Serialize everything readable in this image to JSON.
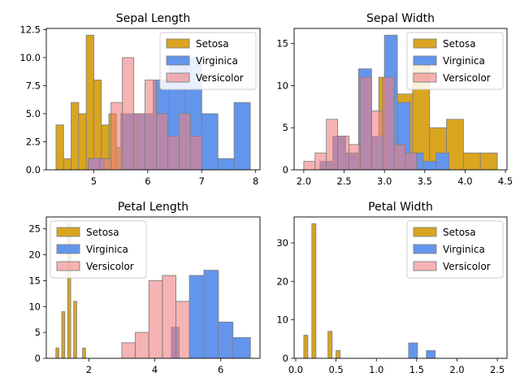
{
  "chart_data": [
    {
      "type": "histogram",
      "title": "Sepal Length",
      "xlim": [
        4.12,
        8.08
      ],
      "ylim": [
        0,
        12.6
      ],
      "xticks": [
        5,
        6,
        7,
        8
      ],
      "yticks": [
        0.0,
        2.5,
        5.0,
        7.5,
        10.0,
        12.5
      ],
      "ytick_labels": [
        "0.0",
        "2.5",
        "5.0",
        "7.5",
        "10.0",
        "12.5"
      ],
      "legend": "top-right",
      "series": [
        {
          "name": "Setosa",
          "color": "#DAA520",
          "edge": "#808080",
          "alpha": 1.0,
          "bins": [
            [
              4.3,
              4.44,
              4
            ],
            [
              4.44,
              4.58,
              1
            ],
            [
              4.58,
              4.72,
              6
            ],
            [
              4.72,
              4.86,
              5
            ],
            [
              4.86,
              5.0,
              12
            ],
            [
              5.0,
              5.14,
              8
            ],
            [
              5.14,
              5.28,
              4
            ],
            [
              5.28,
              5.42,
              5
            ],
            [
              5.42,
              5.56,
              2
            ],
            [
              5.56,
              5.7,
              3
            ]
          ]
        },
        {
          "name": "Virginica",
          "color": "#6495ED",
          "edge": "#808080",
          "alpha": 1.0,
          "bins": [
            [
              4.9,
              5.2,
              1
            ],
            [
              5.2,
              5.5,
              0
            ],
            [
              5.5,
              5.8,
              5
            ],
            [
              5.8,
              6.1,
              5
            ],
            [
              6.1,
              6.4,
              8
            ],
            [
              6.4,
              6.7,
              10
            ],
            [
              6.7,
              7.0,
              10
            ],
            [
              7.0,
              7.3,
              5
            ],
            [
              7.3,
              7.6,
              1
            ],
            [
              7.6,
              7.9,
              6
            ]
          ]
        },
        {
          "name": "Versicolor",
          "color": "#F08080",
          "edge": "#808080",
          "alpha": 0.6,
          "bins": [
            [
              4.9,
              5.11,
              1
            ],
            [
              5.11,
              5.32,
              1
            ],
            [
              5.32,
              5.53,
              6
            ],
            [
              5.53,
              5.74,
              10
            ],
            [
              5.74,
              5.95,
              5
            ],
            [
              5.95,
              6.16,
              8
            ],
            [
              6.16,
              6.37,
              5
            ],
            [
              6.37,
              6.58,
              3
            ],
            [
              6.58,
              6.79,
              5
            ],
            [
              6.79,
              7.0,
              3
            ]
          ]
        }
      ]
    },
    {
      "type": "histogram",
      "title": "Sepal Width",
      "xlim": [
        1.88,
        4.52
      ],
      "ylim": [
        0,
        16.8
      ],
      "xticks": [
        2.0,
        2.5,
        3.0,
        3.5,
        4.0,
        4.5
      ],
      "yticks": [
        0,
        5,
        10,
        15
      ],
      "ytick_labels": [
        "0",
        "5",
        "10",
        "15"
      ],
      "legend": "top-right",
      "series": [
        {
          "name": "Setosa",
          "color": "#DAA520",
          "edge": "#808080",
          "alpha": 1.0,
          "bins": [
            [
              2.3,
              2.51,
              1
            ],
            [
              2.51,
              2.72,
              0
            ],
            [
              2.72,
              2.93,
              3
            ],
            [
              2.93,
              3.14,
              11
            ],
            [
              3.14,
              3.35,
              9
            ],
            [
              3.35,
              3.56,
              13
            ],
            [
              3.56,
              3.77,
              5
            ],
            [
              3.77,
              3.98,
              6
            ],
            [
              3.98,
              4.19,
              2
            ],
            [
              4.19,
              4.4,
              2
            ]
          ]
        },
        {
          "name": "Virginica",
          "color": "#6495ED",
          "edge": "#808080",
          "alpha": 1.0,
          "bins": [
            [
              2.2,
              2.36,
              1
            ],
            [
              2.36,
              2.52,
              4
            ],
            [
              2.52,
              2.68,
              2
            ],
            [
              2.68,
              2.84,
              12
            ],
            [
              2.84,
              3.0,
              4
            ],
            [
              3.0,
              3.16,
              16
            ],
            [
              3.16,
              3.32,
              8
            ],
            [
              3.32,
              3.48,
              2
            ],
            [
              3.48,
              3.64,
              1
            ],
            [
              3.64,
              3.8,
              2
            ]
          ]
        },
        {
          "name": "Versicolor",
          "color": "#F08080",
          "edge": "#808080",
          "alpha": 0.6,
          "bins": [
            [
              2.0,
              2.14,
              1
            ],
            [
              2.14,
              2.28,
              2
            ],
            [
              2.28,
              2.42,
              6
            ],
            [
              2.42,
              2.56,
              4
            ],
            [
              2.56,
              2.7,
              3
            ],
            [
              2.7,
              2.84,
              11
            ],
            [
              2.84,
              2.98,
              7
            ],
            [
              2.98,
              3.12,
              11
            ],
            [
              3.12,
              3.26,
              3
            ],
            [
              3.26,
              3.4,
              2
            ]
          ]
        }
      ]
    },
    {
      "type": "histogram",
      "title": "Petal Length",
      "xlim": [
        0.71,
        7.19
      ],
      "ylim": [
        0,
        27.3
      ],
      "xticks": [
        2,
        4,
        6
      ],
      "yticks": [
        0,
        5,
        10,
        15,
        20,
        25
      ],
      "ytick_labels": [
        "0",
        "5",
        "10",
        "15",
        "20",
        "25"
      ],
      "legend": "top-left",
      "series": [
        {
          "name": "Setosa",
          "color": "#DAA520",
          "edge": "#808080",
          "alpha": 1.0,
          "bins": [
            [
              1.0,
              1.09,
              2
            ],
            [
              1.09,
              1.18,
              0
            ],
            [
              1.18,
              1.27,
              9
            ],
            [
              1.27,
              1.36,
              0
            ],
            [
              1.36,
              1.45,
              26
            ],
            [
              1.45,
              1.54,
              0
            ],
            [
              1.54,
              1.63,
              11
            ],
            [
              1.63,
              1.72,
              0
            ],
            [
              1.72,
              1.81,
              0
            ],
            [
              1.81,
              1.9,
              2
            ]
          ]
        },
        {
          "name": "Virginica",
          "color": "#6495ED",
          "edge": "#808080",
          "alpha": 1.0,
          "bins": [
            [
              4.5,
              4.74,
              6
            ],
            [
              4.74,
              4.98,
              0
            ],
            [
              4.98,
              5.22,
              0
            ],
            [
              5.22,
              5.46,
              0
            ],
            [
              5.46,
              5.7,
              0
            ],
            [
              5.7,
              5.94,
              0
            ],
            [
              5.94,
              6.18,
              0
            ],
            [
              6.18,
              6.42,
              0
            ],
            [
              6.42,
              6.66,
              0
            ],
            [
              6.66,
              6.9,
              0
            ]
          ]
        },
        {
          "name": "Versicolor",
          "color": "#F08080",
          "edge": "#808080",
          "alpha": 0.6,
          "bins": [
            [
              3.0,
              3.41,
              3
            ],
            [
              3.41,
              3.82,
              5
            ],
            [
              3.82,
              4.23,
              15
            ],
            [
              4.23,
              4.64,
              16
            ],
            [
              4.64,
              5.05,
              11
            ],
            [
              5.05,
              5.46,
              0
            ],
            [
              5.46,
              5.87,
              0
            ],
            [
              5.87,
              6.28,
              0
            ],
            [
              6.28,
              6.69,
              0
            ],
            [
              6.69,
              7.1,
              0
            ]
          ]
        }
      ],
      "extra_virginica_bins": [
        [
          5.05,
          5.49,
          16
        ],
        [
          5.49,
          5.93,
          17
        ],
        [
          5.93,
          6.37,
          7
        ],
        [
          6.37,
          6.9,
          4
        ]
      ]
    },
    {
      "type": "histogram",
      "title": "Petal Width",
      "xlim": [
        -0.02,
        2.62
      ],
      "ylim": [
        0,
        36.75
      ],
      "xticks": [
        0.0,
        0.5,
        1.0,
        1.5,
        2.0,
        2.5
      ],
      "yticks": [
        0,
        10,
        20,
        30
      ],
      "ytick_labels": [
        "0",
        "10",
        "20",
        "30"
      ],
      "legend": "top-right",
      "series": [
        {
          "name": "Setosa",
          "color": "#DAA520",
          "edge": "#808080",
          "alpha": 1.0,
          "bins": [
            [
              0.1,
              0.15,
              6
            ],
            [
              0.15,
              0.2,
              0
            ],
            [
              0.2,
              0.25,
              35
            ],
            [
              0.25,
              0.3,
              0
            ],
            [
              0.3,
              0.35,
              0
            ],
            [
              0.35,
              0.4,
              0
            ],
            [
              0.4,
              0.45,
              7
            ],
            [
              0.45,
              0.5,
              0
            ],
            [
              0.5,
              0.55,
              2
            ],
            [
              0.55,
              0.6,
              0
            ]
          ]
        },
        {
          "name": "Virginica",
          "color": "#6495ED",
          "edge": "#808080",
          "alpha": 1.0,
          "bins": [
            [
              1.4,
              1.51,
              4
            ],
            [
              1.51,
              1.62,
              0
            ],
            [
              1.62,
              1.73,
              2
            ],
            [
              1.73,
              1.84,
              0
            ],
            [
              1.84,
              1.95,
              0
            ],
            [
              1.95,
              2.06,
              0
            ],
            [
              2.06,
              2.17,
              0
            ],
            [
              2.17,
              2.28,
              0
            ],
            [
              2.28,
              2.39,
              0
            ],
            [
              2.39,
              2.5,
              0
            ]
          ]
        },
        {
          "name": "Versicolor",
          "color": "#F08080",
          "edge": "#808080",
          "alpha": 0.6,
          "bins": [
            [
              1.0,
              1.08,
              0
            ],
            [
              1.08,
              1.16,
              0
            ],
            [
              1.16,
              1.24,
              0
            ],
            [
              1.24,
              1.32,
              0
            ],
            [
              1.32,
              1.4,
              0
            ],
            [
              1.4,
              1.48,
              0
            ],
            [
              1.48,
              1.56,
              0
            ],
            [
              1.56,
              1.64,
              0
            ],
            [
              1.64,
              1.72,
              0
            ],
            [
              1.72,
              1.8,
              0
            ]
          ]
        }
      ]
    }
  ]
}
